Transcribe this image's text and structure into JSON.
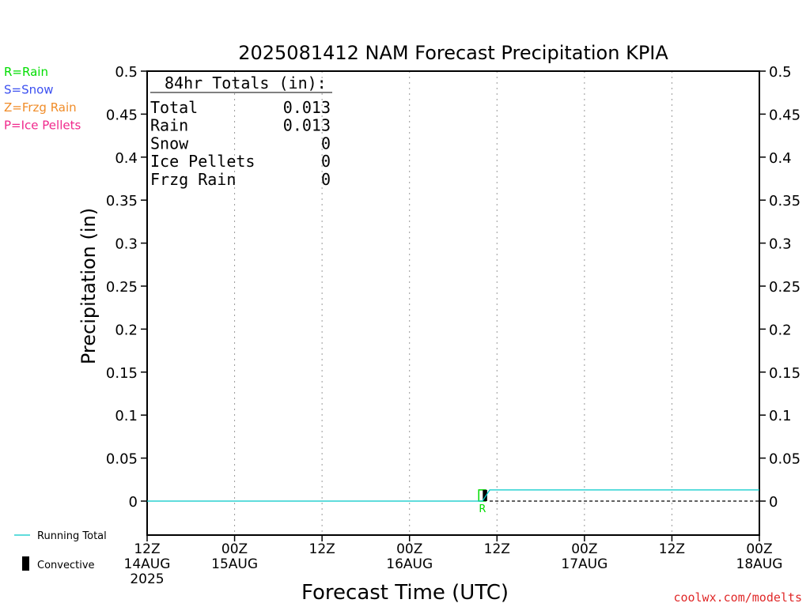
{
  "chart_data": {
    "type": "line",
    "title": "2025081412 NAM Forecast Precipitation KPIA",
    "ylabel": "Precipitation (in)",
    "xlabel": "Forecast Time (UTC)",
    "ylim": [
      0,
      0.5
    ],
    "y_ticks": [
      "0",
      "0.05",
      "0.1",
      "0.15",
      "0.2",
      "0.25",
      "0.3",
      "0.35",
      "0.4",
      "0.45",
      "0.5"
    ],
    "x_range_hours": [
      0,
      84
    ],
    "x_ticks": [
      {
        "hour": 0,
        "line1": "12Z",
        "line2": "14AUG",
        "line3": "2025"
      },
      {
        "hour": 12,
        "line1": "00Z",
        "line2": "15AUG",
        "line3": ""
      },
      {
        "hour": 24,
        "line1": "12Z",
        "line2": "",
        "line3": ""
      },
      {
        "hour": 36,
        "line1": "00Z",
        "line2": "16AUG",
        "line3": ""
      },
      {
        "hour": 48,
        "line1": "12Z",
        "line2": "",
        "line3": ""
      },
      {
        "hour": 60,
        "line1": "00Z",
        "line2": "17AUG",
        "line3": ""
      },
      {
        "hour": 72,
        "line1": "12Z",
        "line2": "",
        "line3": ""
      },
      {
        "hour": 84,
        "line1": "00Z",
        "line2": "18AUG",
        "line3": ""
      }
    ],
    "grid": "vertical dotted",
    "running_total": {
      "name": "Running Total",
      "color": "#00c8c8",
      "points": [
        [
          0,
          0
        ],
        [
          46,
          0
        ],
        [
          47,
          0.013
        ],
        [
          84,
          0.013
        ]
      ]
    },
    "rain_bars": {
      "color": "#00dd00",
      "items": [
        {
          "hour": 46,
          "value": 0.013,
          "label": "R"
        }
      ]
    },
    "convective_bars": {
      "color": "#000000",
      "items": [
        {
          "hour": 47,
          "value": 0.013
        }
      ]
    },
    "totals_box": {
      "heading": "84hr Totals (in):",
      "rows": [
        {
          "label": "Total",
          "value": "0.013"
        },
        {
          "label": "Rain",
          "value": "0.013"
        },
        {
          "label": "Snow",
          "value": "0"
        },
        {
          "label": "Ice Pellets",
          "value": "0"
        },
        {
          "label": "Frzg Rain",
          "value": "0"
        }
      ]
    },
    "type_legend": [
      {
        "text": "R=Rain",
        "color": "#00dd00"
      },
      {
        "text": "S=Snow",
        "color": "#3c50f0"
      },
      {
        "text": "Z=Frzg Rain",
        "color": "#f08c28"
      },
      {
        "text": "P=Ice Pellets",
        "color": "#f0288c"
      }
    ],
    "series_legend": {
      "running_total": "Running Total",
      "convective": "Convective"
    }
  },
  "credit": "coolwx.com/modelts"
}
